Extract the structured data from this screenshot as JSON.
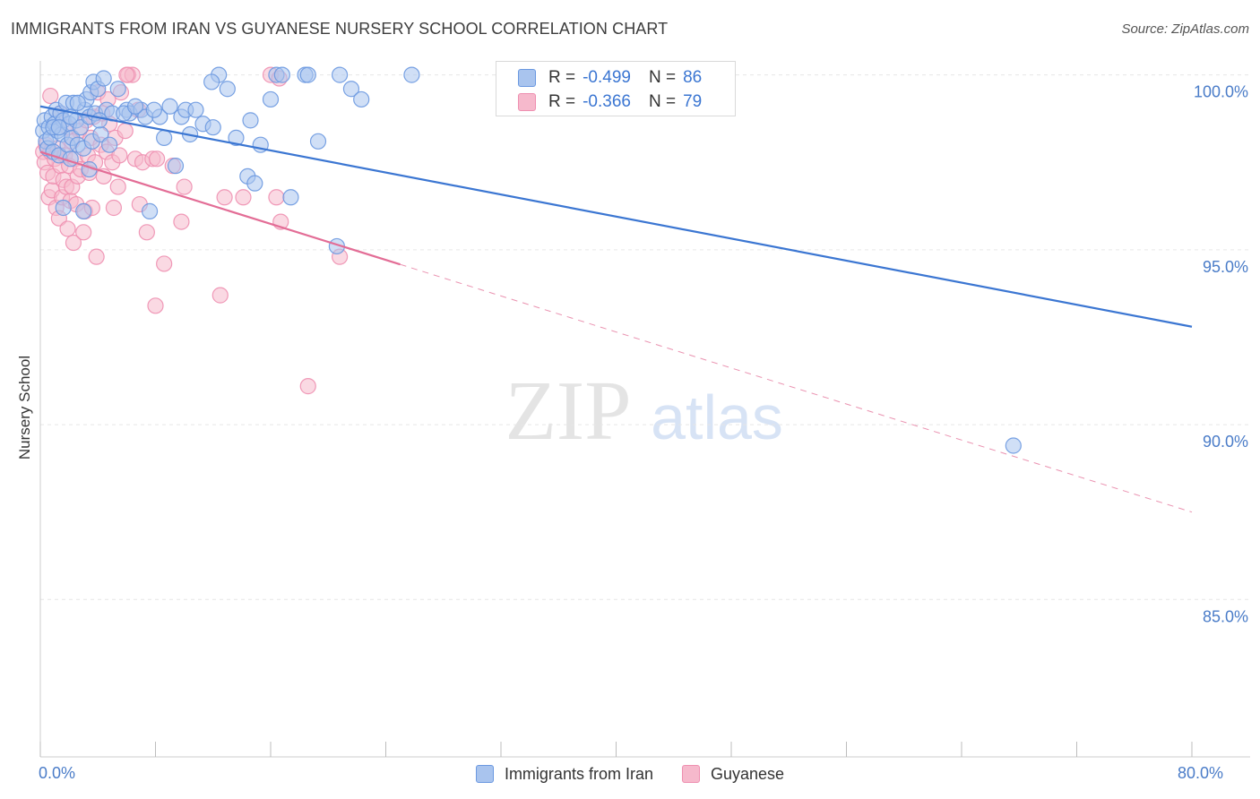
{
  "header": {
    "title": "IMMIGRANTS FROM IRAN VS GUYANESE NURSERY SCHOOL CORRELATION CHART",
    "source": "Source: ZipAtlas.com"
  },
  "watermark": {
    "zip": "ZIP",
    "atlas": "atlas"
  },
  "colors": {
    "blue": "#3b76d2",
    "blue_fill": "#a9c4ee",
    "blue_stroke": "#6a98e0",
    "pink": "#e36d96",
    "pink_fill": "#f6b9cc",
    "pink_stroke": "#ee8fb0",
    "axis_text": "#4a7cc8",
    "grid": "#e6e6e6"
  },
  "legend": {
    "r_label": "R =",
    "n_label": "N =",
    "rows": [
      {
        "r": "-0.499",
        "n": "86"
      },
      {
        "r": "-0.366",
        "n": "79"
      }
    ]
  },
  "chart_data": {
    "type": "scatter",
    "title": "IMMIGRANTS FROM IRAN VS GUYANESE NURSERY SCHOOL CORRELATION CHART",
    "xlabel": "",
    "ylabel": "Nursery School",
    "xlim": [
      0,
      80
    ],
    "ylim": [
      80.5,
      100.4
    ],
    "x_ticks": [
      0,
      8,
      16,
      24,
      32,
      40,
      48,
      56,
      64,
      72,
      80
    ],
    "x_tick_labels": [
      {
        "value": 0,
        "label": "0.0%"
      },
      {
        "value": 80,
        "label": "80.0%"
      }
    ],
    "y_ticks": [
      {
        "value": 100,
        "label": "100.0%"
      },
      {
        "value": 95,
        "label": "95.0%"
      },
      {
        "value": 90,
        "label": "90.0%"
      },
      {
        "value": 85,
        "label": "85.0%"
      }
    ],
    "grid": true,
    "legend_position": "top-center",
    "series": [
      {
        "name": "Immigrants from Iran",
        "color": "#3b76d2",
        "r": -0.499,
        "n": 86,
        "trend": {
          "x0": 0,
          "y0": 99.1,
          "x1": 80,
          "y1": 92.8
        },
        "points": [
          [
            0.2,
            98.4
          ],
          [
            0.3,
            98.7
          ],
          [
            0.4,
            98.1
          ],
          [
            0.5,
            97.9
          ],
          [
            0.6,
            98.5
          ],
          [
            0.7,
            98.2
          ],
          [
            0.8,
            98.8
          ],
          [
            0.9,
            97.8
          ],
          [
            1.0,
            98.6
          ],
          [
            1.1,
            99.0
          ],
          [
            1.2,
            98.4
          ],
          [
            1.3,
            97.7
          ],
          [
            1.4,
            98.9
          ],
          [
            1.5,
            98.3
          ],
          [
            1.6,
            98.7
          ],
          [
            1.8,
            99.2
          ],
          [
            1.9,
            98.0
          ],
          [
            2.0,
            98.6
          ],
          [
            2.1,
            97.6
          ],
          [
            2.2,
            98.2
          ],
          [
            2.3,
            99.2
          ],
          [
            2.5,
            98.7
          ],
          [
            2.6,
            98.0
          ],
          [
            2.8,
            98.5
          ],
          [
            3.0,
            97.9
          ],
          [
            3.1,
            99.0
          ],
          [
            3.2,
            99.3
          ],
          [
            3.4,
            98.8
          ],
          [
            3.5,
            99.5
          ],
          [
            3.6,
            98.1
          ],
          [
            3.7,
            99.8
          ],
          [
            3.8,
            98.9
          ],
          [
            4.0,
            99.6
          ],
          [
            4.2,
            98.3
          ],
          [
            4.4,
            99.9
          ],
          [
            4.6,
            99.0
          ],
          [
            5.0,
            98.9
          ],
          [
            5.4,
            99.6
          ],
          [
            6.0,
            99.0
          ],
          [
            6.2,
            98.9
          ],
          [
            7.0,
            99.0
          ],
          [
            7.3,
            98.8
          ],
          [
            8.3,
            98.8
          ],
          [
            8.6,
            98.2
          ],
          [
            9.4,
            97.4
          ],
          [
            9.8,
            98.8
          ],
          [
            10.1,
            99.0
          ],
          [
            10.4,
            98.3
          ],
          [
            10.8,
            99.0
          ],
          [
            11.3,
            98.6
          ],
          [
            12.0,
            98.5
          ],
          [
            12.4,
            100.0
          ],
          [
            13.0,
            99.6
          ],
          [
            13.6,
            98.2
          ],
          [
            14.4,
            97.1
          ],
          [
            14.6,
            98.7
          ],
          [
            14.9,
            96.9
          ],
          [
            15.3,
            98.0
          ],
          [
            16.0,
            99.3
          ],
          [
            17.4,
            96.5
          ],
          [
            18.4,
            100.0
          ],
          [
            18.6,
            100.0
          ],
          [
            16.4,
            100.0
          ],
          [
            16.8,
            100.0
          ],
          [
            19.3,
            98.1
          ],
          [
            20.6,
            95.1
          ],
          [
            20.8,
            100.0
          ],
          [
            21.6,
            99.6
          ],
          [
            22.3,
            99.3
          ],
          [
            25.8,
            100.0
          ],
          [
            7.6,
            96.1
          ],
          [
            1.6,
            96.2
          ],
          [
            3.0,
            96.1
          ],
          [
            4.8,
            98.0
          ],
          [
            2.1,
            98.8
          ],
          [
            0.9,
            98.5
          ],
          [
            5.8,
            98.9
          ],
          [
            6.6,
            99.1
          ],
          [
            4.1,
            98.7
          ],
          [
            2.6,
            99.2
          ],
          [
            1.3,
            98.5
          ],
          [
            9.0,
            99.1
          ],
          [
            11.9,
            99.8
          ],
          [
            3.4,
            97.3
          ],
          [
            67.6,
            89.4
          ],
          [
            7.9,
            99.0
          ]
        ]
      },
      {
        "name": "Guyanese",
        "color": "#e36d96",
        "r": -0.366,
        "n": 79,
        "trend": {
          "x0": 0,
          "y0": 97.8,
          "x1": 80,
          "y1": 87.5,
          "solid_until_x": 25
        },
        "points": [
          [
            0.2,
            97.8
          ],
          [
            0.3,
            97.5
          ],
          [
            0.4,
            98.0
          ],
          [
            0.5,
            97.2
          ],
          [
            0.6,
            96.5
          ],
          [
            0.7,
            97.8
          ],
          [
            0.8,
            96.7
          ],
          [
            0.9,
            97.1
          ],
          [
            1.0,
            97.6
          ],
          [
            1.1,
            96.2
          ],
          [
            1.2,
            97.9
          ],
          [
            1.3,
            95.9
          ],
          [
            1.4,
            97.4
          ],
          [
            1.5,
            96.5
          ],
          [
            1.6,
            97.0
          ],
          [
            1.7,
            97.7
          ],
          [
            1.8,
            96.8
          ],
          [
            1.9,
            95.6
          ],
          [
            2.0,
            97.4
          ],
          [
            2.1,
            96.4
          ],
          [
            2.2,
            96.8
          ],
          [
            2.3,
            95.2
          ],
          [
            2.4,
            97.6
          ],
          [
            2.5,
            96.3
          ],
          [
            2.6,
            97.1
          ],
          [
            2.7,
            98.4
          ],
          [
            2.8,
            97.3
          ],
          [
            3.0,
            95.5
          ],
          [
            3.1,
            96.1
          ],
          [
            3.3,
            97.7
          ],
          [
            3.4,
            97.2
          ],
          [
            3.5,
            98.2
          ],
          [
            3.6,
            96.2
          ],
          [
            3.7,
            98.8
          ],
          [
            3.8,
            97.5
          ],
          [
            4.0,
            99.5
          ],
          [
            4.2,
            98.0
          ],
          [
            4.4,
            97.1
          ],
          [
            4.6,
            97.8
          ],
          [
            4.8,
            98.6
          ],
          [
            5.0,
            97.5
          ],
          [
            5.2,
            98.2
          ],
          [
            5.4,
            96.8
          ],
          [
            5.6,
            99.5
          ],
          [
            5.9,
            98.4
          ],
          [
            6.1,
            100.0
          ],
          [
            6.4,
            100.0
          ],
          [
            6.6,
            97.6
          ],
          [
            6.9,
            96.3
          ],
          [
            7.1,
            97.5
          ],
          [
            7.4,
            95.5
          ],
          [
            7.8,
            97.6
          ],
          [
            8.1,
            97.6
          ],
          [
            8.6,
            94.6
          ],
          [
            9.8,
            95.8
          ],
          [
            10.0,
            96.8
          ],
          [
            12.5,
            93.7
          ],
          [
            12.8,
            96.5
          ],
          [
            14.1,
            96.5
          ],
          [
            16.4,
            96.5
          ],
          [
            16.7,
            95.8
          ],
          [
            16.0,
            100.0
          ],
          [
            16.6,
            99.9
          ],
          [
            18.6,
            91.1
          ],
          [
            20.8,
            94.8
          ],
          [
            3.9,
            94.8
          ],
          [
            5.1,
            96.2
          ],
          [
            6.0,
            100.0
          ],
          [
            2.2,
            98.1
          ],
          [
            1.4,
            98.9
          ],
          [
            0.7,
            99.4
          ],
          [
            8.0,
            93.4
          ],
          [
            4.3,
            98.9
          ],
          [
            3.2,
            98.7
          ],
          [
            1.9,
            98.5
          ],
          [
            5.5,
            97.7
          ],
          [
            4.7,
            99.3
          ],
          [
            9.2,
            97.4
          ],
          [
            6.8,
            99.0
          ]
        ]
      }
    ]
  }
}
